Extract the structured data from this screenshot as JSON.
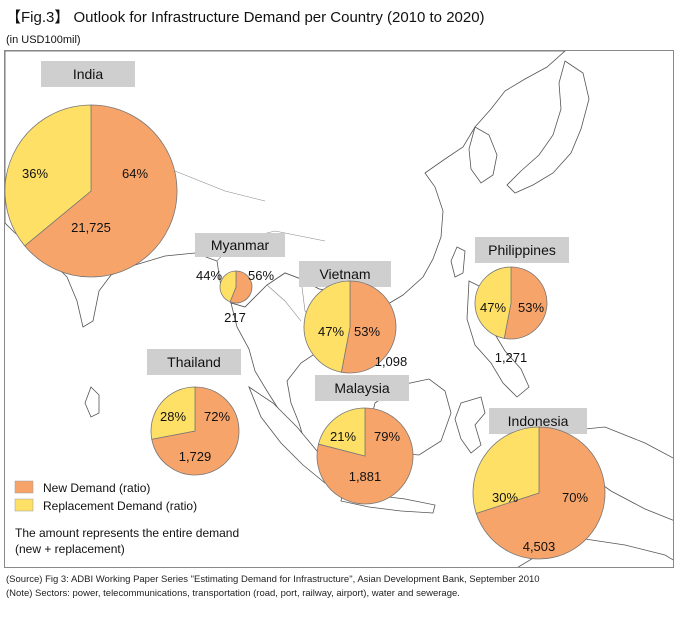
{
  "figure": {
    "title": "【Fig.3】 Outlook for Infrastructure Demand per Country (2010 to 2020)",
    "unit_note": "(in USD100mil)",
    "source_lines": [
      "(Source) Fig 3: ADBI Working Paper Series \"Estimating Demand for Infrastructure\", Asian Development Bank, September 2010",
      "(Note) Sectors: power, telecommunications, transportation (road, port, railway, airport), water and sewerage."
    ]
  },
  "colors": {
    "new_demand": "#F7A46B",
    "replacement_demand": "#FFE066",
    "land": "#ffffff",
    "sea": "#ffffff",
    "label_box": "#cfcfcf"
  },
  "chart_data": {
    "type": "pie",
    "legend": {
      "position": "bottom-left",
      "entries": [
        {
          "name": "New Demand (ratio)",
          "color_key": "new_demand"
        },
        {
          "name": "Replacement Demand (ratio)",
          "color_key": "replacement_demand"
        }
      ],
      "note_lines": [
        "The amount represents the entire demand",
        "(new + replacement)"
      ]
    },
    "countries": [
      {
        "name": "India",
        "total_label": "21,725",
        "new_pct": 64,
        "replacement_pct": 36,
        "new_label": "64%",
        "replacement_label": "36%"
      },
      {
        "name": "Myanmar",
        "total_label": "217",
        "new_pct": 56,
        "replacement_pct": 44,
        "new_label": "56%",
        "replacement_label": "44%"
      },
      {
        "name": "Vietnam",
        "total_label": "1,098",
        "new_pct": 53,
        "replacement_pct": 47,
        "new_label": "53%",
        "replacement_label": "47%"
      },
      {
        "name": "Philippines",
        "total_label": "1,271",
        "new_pct": 53,
        "replacement_pct": 47,
        "new_label": "53%",
        "replacement_label": "47%"
      },
      {
        "name": "Thailand",
        "total_label": "1,729",
        "new_pct": 72,
        "replacement_pct": 28,
        "new_label": "72%",
        "replacement_label": "28%"
      },
      {
        "name": "Malaysia",
        "total_label": "1,881",
        "new_pct": 79,
        "replacement_pct": 21,
        "new_label": "79%",
        "replacement_label": "21%"
      },
      {
        "name": "Indonesia",
        "total_label": "4,503",
        "new_pct": 70,
        "replacement_pct": 30,
        "new_label": "70%",
        "replacement_label": "30%"
      }
    ]
  }
}
